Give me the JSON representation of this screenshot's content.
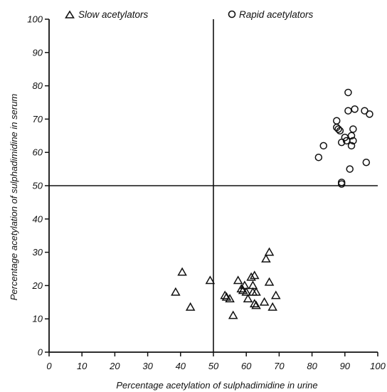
{
  "chart_data": {
    "type": "scatter",
    "xlabel": "Percentage acetylation of sulphadimidine in urine",
    "ylabel": "Percentage acetylation of sulphadimidine in serum",
    "xlim": [
      0,
      100
    ],
    "ylim": [
      0,
      100
    ],
    "xticks": [
      0,
      10,
      20,
      30,
      40,
      50,
      60,
      70,
      80,
      90,
      100
    ],
    "yticks": [
      0,
      10,
      20,
      30,
      40,
      50,
      60,
      70,
      80,
      90,
      100
    ],
    "grid": false,
    "legend_position": "top",
    "reference_lines": {
      "x": 50,
      "y": 50
    },
    "series": [
      {
        "name": "Slow acetylators",
        "marker": "triangle",
        "points": [
          [
            38.5,
            18
          ],
          [
            40.5,
            24
          ],
          [
            43,
            13.5
          ],
          [
            49,
            21.5
          ],
          [
            53.5,
            17
          ],
          [
            54,
            16.5
          ],
          [
            55,
            16
          ],
          [
            56,
            11
          ],
          [
            57.5,
            21.5
          ],
          [
            58.5,
            19
          ],
          [
            59,
            18.5
          ],
          [
            59.5,
            20
          ],
          [
            60,
            18
          ],
          [
            60.5,
            16
          ],
          [
            61.5,
            22.5
          ],
          [
            62,
            18
          ],
          [
            62,
            20
          ],
          [
            62.5,
            23
          ],
          [
            62.5,
            14.5
          ],
          [
            63,
            14
          ],
          [
            63,
            18
          ],
          [
            65.5,
            15
          ],
          [
            66,
            28
          ],
          [
            67,
            30
          ],
          [
            67,
            21
          ],
          [
            68,
            13.5
          ],
          [
            69,
            17
          ]
        ]
      },
      {
        "name": "Rapid acetylators",
        "marker": "circle",
        "points": [
          [
            82,
            58.5
          ],
          [
            83.5,
            62
          ],
          [
            87.5,
            69.5
          ],
          [
            87.5,
            67.5
          ],
          [
            88,
            67
          ],
          [
            88.5,
            66.5
          ],
          [
            89,
            51
          ],
          [
            89,
            50.5
          ],
          [
            89,
            63
          ],
          [
            90,
            64.5
          ],
          [
            90.5,
            63.5
          ],
          [
            91,
            78
          ],
          [
            91,
            72.5
          ],
          [
            91.5,
            55
          ],
          [
            92,
            65
          ],
          [
            92,
            62
          ],
          [
            92.5,
            63.5
          ],
          [
            92.5,
            67
          ],
          [
            93,
            73
          ],
          [
            96,
            72.5
          ],
          [
            96.5,
            57
          ],
          [
            97.5,
            71.5
          ]
        ]
      }
    ]
  }
}
